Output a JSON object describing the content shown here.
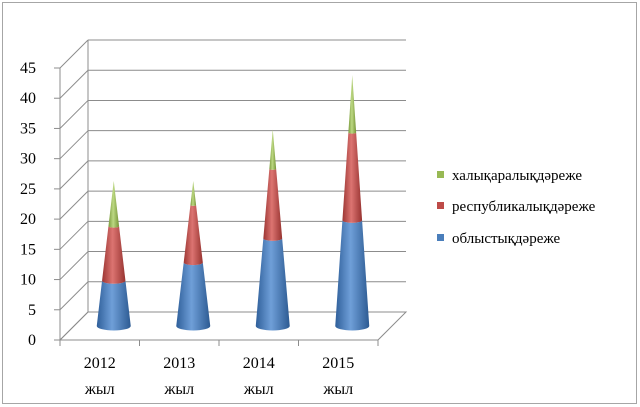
{
  "chart_data": {
    "type": "bar",
    "style": "3d-cone-stacked",
    "categories": [
      "2012",
      "2013",
      "2014",
      "2015"
    ],
    "category_suffix": "жыл",
    "series": [
      {
        "name": "облыстық дәреже",
        "values": [
          7.5,
          10.5,
          14.5,
          17.5
        ],
        "color": "#4a7ebb"
      },
      {
        "name": "республикалық дәреже",
        "values": [
          9,
          9.5,
          11.5,
          14.5
        ],
        "color": "#be4b48"
      },
      {
        "name": "халықаралық дәреже",
        "values": [
          7.5,
          4,
          6.5,
          9.5
        ],
        "color": "#98b954"
      }
    ],
    "ylim": [
      0,
      45
    ],
    "yticks": [
      "0",
      "5",
      "10",
      "15",
      "20",
      "25",
      "30",
      "35",
      "40",
      "45"
    ],
    "grid": true,
    "legend_position": "right",
    "legend": [
      "халықаралықдәреже",
      "республикалықдәреже",
      "облыстықдәреже"
    ],
    "title": "",
    "xlabel": "",
    "ylabel": ""
  }
}
